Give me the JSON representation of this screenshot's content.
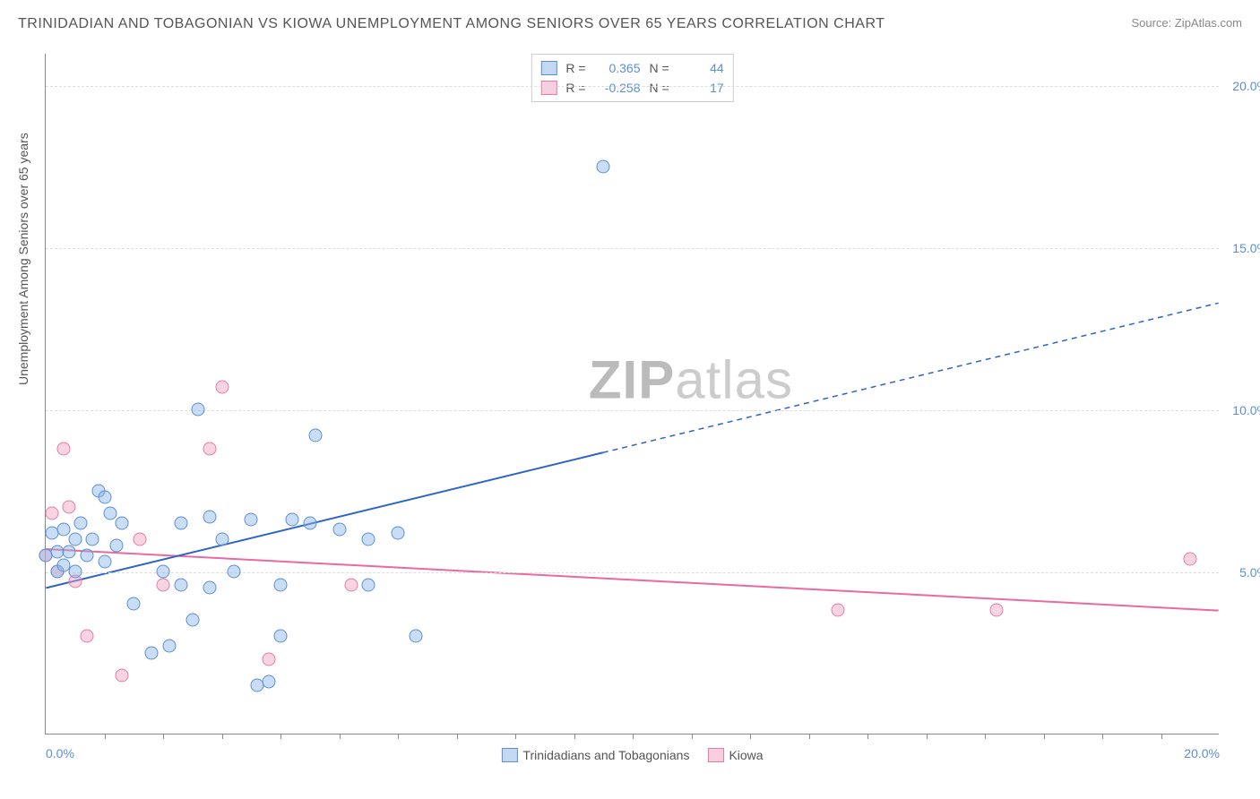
{
  "title": "TRINIDADIAN AND TOBAGONIAN VS KIOWA UNEMPLOYMENT AMONG SENIORS OVER 65 YEARS CORRELATION CHART",
  "source": "Source: ZipAtlas.com",
  "y_axis_title": "Unemployment Among Seniors over 65 years",
  "watermark_a": "ZIP",
  "watermark_b": "atlas",
  "chart": {
    "type": "scatter",
    "xlim": [
      0,
      20
    ],
    "ylim": [
      0,
      21
    ],
    "x_ticks": [
      0,
      20
    ],
    "x_tick_labels": [
      "0.0%",
      "20.0%"
    ],
    "y_ticks": [
      5,
      10,
      15,
      20
    ],
    "y_tick_labels": [
      "5.0%",
      "10.0%",
      "15.0%",
      "20.0%"
    ],
    "background_color": "#ffffff",
    "grid_color": "#dddddd",
    "axis_color": "#888888",
    "tick_label_color": "#5b8fd6",
    "minor_x_ticks": [
      1,
      2,
      3,
      4,
      5,
      6,
      7,
      8,
      9,
      10,
      11,
      12,
      13,
      14,
      15,
      16,
      17,
      18,
      19
    ]
  },
  "series": {
    "blue": {
      "label": "Trinidadians and Tobagonians",
      "color_fill": "rgba(135,180,230,0.45)",
      "color_stroke": "#5b8fd6",
      "R": "0.365",
      "N": "44",
      "trend": {
        "x1": 0,
        "y1": 4.5,
        "x2": 20,
        "y2": 13.3,
        "solid_until_x": 9.5,
        "color": "#2d63c8",
        "width": 2
      },
      "points": [
        [
          0.0,
          5.5
        ],
        [
          0.1,
          6.2
        ],
        [
          0.2,
          5.0
        ],
        [
          0.2,
          5.6
        ],
        [
          0.3,
          6.3
        ],
        [
          0.3,
          5.2
        ],
        [
          0.4,
          5.6
        ],
        [
          0.5,
          6.0
        ],
        [
          0.5,
          5.0
        ],
        [
          0.6,
          6.5
        ],
        [
          0.7,
          5.5
        ],
        [
          0.8,
          6.0
        ],
        [
          0.9,
          7.5
        ],
        [
          1.0,
          5.3
        ],
        [
          1.0,
          7.3
        ],
        [
          1.1,
          6.8
        ],
        [
          1.2,
          5.8
        ],
        [
          1.3,
          6.5
        ],
        [
          1.5,
          4.0
        ],
        [
          1.8,
          2.5
        ],
        [
          2.0,
          5.0
        ],
        [
          2.1,
          2.7
        ],
        [
          2.3,
          4.6
        ],
        [
          2.3,
          6.5
        ],
        [
          2.5,
          3.5
        ],
        [
          2.6,
          10.0
        ],
        [
          2.8,
          4.5
        ],
        [
          2.8,
          6.7
        ],
        [
          3.0,
          6.0
        ],
        [
          3.2,
          5.0
        ],
        [
          3.5,
          6.6
        ],
        [
          3.6,
          1.5
        ],
        [
          3.8,
          1.6
        ],
        [
          4.0,
          3.0
        ],
        [
          4.0,
          4.6
        ],
        [
          4.2,
          6.6
        ],
        [
          4.5,
          6.5
        ],
        [
          4.6,
          9.2
        ],
        [
          5.0,
          6.3
        ],
        [
          5.5,
          6.0
        ],
        [
          5.5,
          4.6
        ],
        [
          6.0,
          6.2
        ],
        [
          6.3,
          3.0
        ],
        [
          9.5,
          17.5
        ]
      ]
    },
    "pink": {
      "label": "Kiowa",
      "color_fill": "rgba(240,160,190,0.45)",
      "color_stroke": "#e57ba5",
      "R": "-0.258",
      "N": "17",
      "trend": {
        "x1": 0,
        "y1": 5.7,
        "x2": 20,
        "y2": 3.8,
        "color": "#e86aa0",
        "width": 2
      },
      "points": [
        [
          0.0,
          5.5
        ],
        [
          0.1,
          6.8
        ],
        [
          0.2,
          5.0
        ],
        [
          0.3,
          8.8
        ],
        [
          0.4,
          7.0
        ],
        [
          0.5,
          4.7
        ],
        [
          0.7,
          3.0
        ],
        [
          1.3,
          1.8
        ],
        [
          1.6,
          6.0
        ],
        [
          2.0,
          4.6
        ],
        [
          2.8,
          8.8
        ],
        [
          3.0,
          10.7
        ],
        [
          3.8,
          2.3
        ],
        [
          5.2,
          4.6
        ],
        [
          13.5,
          3.8
        ],
        [
          16.2,
          3.8
        ],
        [
          19.5,
          5.4
        ]
      ]
    }
  },
  "stats_labels": {
    "R": "R =",
    "N": "N ="
  },
  "legend": {
    "items": [
      {
        "key": "blue",
        "label": "Trinidadians and Tobagonians"
      },
      {
        "key": "pink",
        "label": "Kiowa"
      }
    ]
  }
}
